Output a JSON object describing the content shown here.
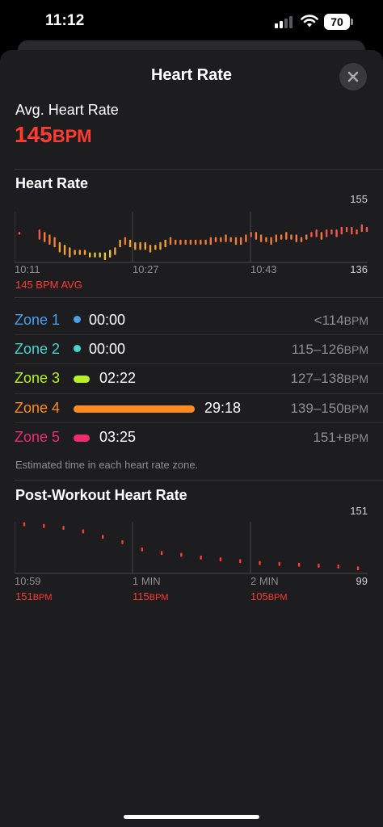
{
  "status": {
    "time": "11:12",
    "battery": "70"
  },
  "header": {
    "title": "Heart Rate"
  },
  "summary": {
    "label": "Avg. Heart Rate",
    "value": "145",
    "unit": "BPM"
  },
  "hr_section": {
    "title": "Heart Rate",
    "max_label": "155",
    "min_label": "136",
    "x_ticks": [
      "10:11",
      "10:27",
      "10:43"
    ],
    "avg_note": "145 BPM AVG"
  },
  "zones": [
    {
      "name": "Zone 1",
      "time": "00:00",
      "range": "<114",
      "unit": "BPM",
      "color": "#4a9eea",
      "fraction": 0
    },
    {
      "name": "Zone 2",
      "time": "00:00",
      "range": "115–126",
      "unit": "BPM",
      "color": "#49d3d0",
      "fraction": 0
    },
    {
      "name": "Zone 3",
      "time": "02:22",
      "range": "127–138",
      "unit": "BPM",
      "color": "#b6f026",
      "fraction": 0.08
    },
    {
      "name": "Zone 4",
      "time": "29:18",
      "range": "139–150",
      "unit": "BPM",
      "color": "#ff8a1f",
      "fraction": 1.0
    },
    {
      "name": "Zone 5",
      "time": "03:25",
      "range": "151+",
      "unit": "BPM",
      "color": "#f02b6e",
      "fraction": 0.11
    }
  ],
  "zones_note": "Estimated time in each heart rate zone.",
  "post_section": {
    "title": "Post-Workout Heart Rate",
    "max_label": "151",
    "min_label": "99",
    "x_ticks": [
      "10:59",
      "1 MIN",
      "2 MIN"
    ],
    "values": [
      {
        "v": "151",
        "u": "BPM"
      },
      {
        "v": "115",
        "u": "BPM"
      },
      {
        "v": "105",
        "u": "BPM"
      }
    ]
  },
  "chart_data": [
    {
      "type": "bar",
      "title": "Heart Rate",
      "ylim": [
        136,
        155
      ],
      "x_ticks": [
        "10:11",
        "10:27",
        "10:43"
      ],
      "points": [
        {
          "t": 0,
          "lo": 146,
          "hi": 147
        },
        {
          "t": 4,
          "lo": 144,
          "hi": 148
        },
        {
          "t": 5,
          "lo": 143,
          "hi": 147
        },
        {
          "t": 6,
          "lo": 142,
          "hi": 146
        },
        {
          "t": 7,
          "lo": 141,
          "hi": 145
        },
        {
          "t": 8,
          "lo": 139,
          "hi": 143
        },
        {
          "t": 9,
          "lo": 138,
          "hi": 142
        },
        {
          "t": 10,
          "lo": 137,
          "hi": 141
        },
        {
          "t": 11,
          "lo": 138,
          "hi": 140
        },
        {
          "t": 12,
          "lo": 138,
          "hi": 140
        },
        {
          "t": 13,
          "lo": 138,
          "hi": 140
        },
        {
          "t": 14,
          "lo": 137,
          "hi": 139
        },
        {
          "t": 15,
          "lo": 137,
          "hi": 139
        },
        {
          "t": 16,
          "lo": 137,
          "hi": 139
        },
        {
          "t": 17,
          "lo": 136,
          "hi": 139
        },
        {
          "t": 18,
          "lo": 137,
          "hi": 140
        },
        {
          "t": 19,
          "lo": 138,
          "hi": 141
        },
        {
          "t": 20,
          "lo": 141,
          "hi": 144
        },
        {
          "t": 21,
          "lo": 142,
          "hi": 145
        },
        {
          "t": 22,
          "lo": 141,
          "hi": 144
        },
        {
          "t": 23,
          "lo": 140,
          "hi": 143
        },
        {
          "t": 24,
          "lo": 140,
          "hi": 143
        },
        {
          "t": 25,
          "lo": 140,
          "hi": 143
        },
        {
          "t": 26,
          "lo": 139,
          "hi": 142
        },
        {
          "t": 27,
          "lo": 140,
          "hi": 142
        },
        {
          "t": 28,
          "lo": 140,
          "hi": 143
        },
        {
          "t": 29,
          "lo": 141,
          "hi": 144
        },
        {
          "t": 30,
          "lo": 142,
          "hi": 145
        },
        {
          "t": 31,
          "lo": 142,
          "hi": 144
        },
        {
          "t": 32,
          "lo": 142,
          "hi": 144
        },
        {
          "t": 33,
          "lo": 142,
          "hi": 144
        },
        {
          "t": 34,
          "lo": 142,
          "hi": 144
        },
        {
          "t": 35,
          "lo": 142,
          "hi": 144
        },
        {
          "t": 36,
          "lo": 142,
          "hi": 144
        },
        {
          "t": 37,
          "lo": 142,
          "hi": 144
        },
        {
          "t": 38,
          "lo": 142,
          "hi": 145
        },
        {
          "t": 39,
          "lo": 143,
          "hi": 145
        },
        {
          "t": 40,
          "lo": 143,
          "hi": 145
        },
        {
          "t": 41,
          "lo": 143,
          "hi": 146
        },
        {
          "t": 42,
          "lo": 143,
          "hi": 145
        },
        {
          "t": 43,
          "lo": 142,
          "hi": 145
        },
        {
          "t": 44,
          "lo": 142,
          "hi": 145
        },
        {
          "t": 45,
          "lo": 143,
          "hi": 146
        },
        {
          "t": 46,
          "lo": 145,
          "hi": 147
        },
        {
          "t": 47,
          "lo": 144,
          "hi": 147
        },
        {
          "t": 48,
          "lo": 143,
          "hi": 146
        },
        {
          "t": 49,
          "lo": 143,
          "hi": 145
        },
        {
          "t": 50,
          "lo": 142,
          "hi": 145
        },
        {
          "t": 51,
          "lo": 143,
          "hi": 146
        },
        {
          "t": 52,
          "lo": 144,
          "hi": 146
        },
        {
          "t": 53,
          "lo": 144,
          "hi": 147
        },
        {
          "t": 54,
          "lo": 144,
          "hi": 146
        },
        {
          "t": 55,
          "lo": 143,
          "hi": 146
        },
        {
          "t": 56,
          "lo": 143,
          "hi": 145
        },
        {
          "t": 57,
          "lo": 144,
          "hi": 146
        },
        {
          "t": 58,
          "lo": 145,
          "hi": 147
        },
        {
          "t": 59,
          "lo": 145,
          "hi": 148
        },
        {
          "t": 60,
          "lo": 144,
          "hi": 147
        },
        {
          "t": 61,
          "lo": 145,
          "hi": 148
        },
        {
          "t": 62,
          "lo": 146,
          "hi": 148
        },
        {
          "t": 63,
          "lo": 145,
          "hi": 148
        },
        {
          "t": 64,
          "lo": 146,
          "hi": 149
        },
        {
          "t": 65,
          "lo": 147,
          "hi": 149
        },
        {
          "t": 66,
          "lo": 146,
          "hi": 149
        },
        {
          "t": 67,
          "lo": 146,
          "hi": 148
        },
        {
          "t": 68,
          "lo": 147,
          "hi": 150
        },
        {
          "t": 69,
          "lo": 147,
          "hi": 149
        }
      ]
    },
    {
      "type": "scatter",
      "title": "Post-Workout Heart Rate",
      "ylim": [
        99,
        151
      ],
      "x_ticks": [
        "10:59",
        "1 MIN",
        "2 MIN"
      ],
      "points": [
        {
          "t": 0,
          "v": 150
        },
        {
          "t": 1,
          "v": 148
        },
        {
          "t": 2,
          "v": 146
        },
        {
          "t": 3,
          "v": 142
        },
        {
          "t": 4,
          "v": 136
        },
        {
          "t": 5,
          "v": 130
        },
        {
          "t": 6,
          "v": 122
        },
        {
          "t": 7,
          "v": 118
        },
        {
          "t": 8,
          "v": 116
        },
        {
          "t": 9,
          "v": 113
        },
        {
          "t": 10,
          "v": 111
        },
        {
          "t": 11,
          "v": 109
        },
        {
          "t": 12,
          "v": 107
        },
        {
          "t": 13,
          "v": 106
        },
        {
          "t": 14,
          "v": 105
        },
        {
          "t": 15,
          "v": 104
        },
        {
          "t": 16,
          "v": 103
        },
        {
          "t": 17,
          "v": 101
        }
      ]
    }
  ]
}
